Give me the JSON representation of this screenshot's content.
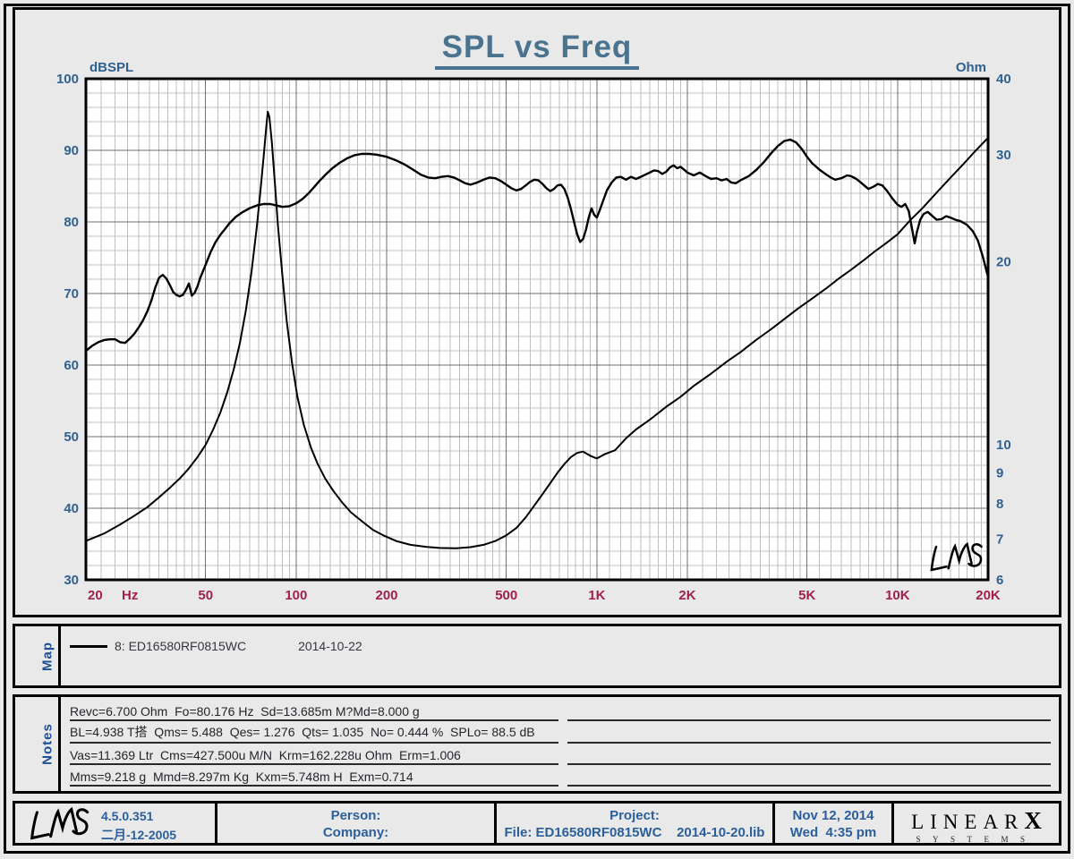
{
  "chart_data": {
    "type": "line",
    "title": "SPL vs Freq",
    "x_axis": {
      "scale": "log",
      "min": 20,
      "max": 20000,
      "unit": "Hz",
      "tick_values": [
        20,
        50,
        100,
        200,
        500,
        1000,
        2000,
        5000,
        10000,
        20000
      ],
      "tick_labels": [
        "20",
        "50",
        "100",
        "200",
        "500",
        "1K",
        "2K",
        "5K",
        "10K",
        "20K"
      ]
    },
    "y_axis_left": {
      "label": "dBSPL",
      "scale": "linear",
      "min": 30,
      "max": 100,
      "tick_values": [
        100,
        90,
        80,
        70,
        60,
        50,
        40,
        30
      ]
    },
    "y_axis_right": {
      "label": "Ohm",
      "scale": "log",
      "min": 6,
      "max": 40,
      "tick_values": [
        40,
        30,
        20,
        10,
        9,
        8,
        7,
        6
      ]
    },
    "grid": true,
    "watermark": "LMS",
    "series": [
      {
        "name": "SPL",
        "legend": "8: ED16580RF0815WC",
        "date": "2014-10-22",
        "axis": "left",
        "color": "#000000",
        "points": [
          [
            20,
            62
          ],
          [
            21,
            62.7
          ],
          [
            22,
            63.2
          ],
          [
            23,
            63.5
          ],
          [
            24,
            63.6
          ],
          [
            25,
            63.6
          ],
          [
            26,
            63.2
          ],
          [
            27,
            63.1
          ],
          [
            28,
            63.7
          ],
          [
            29,
            64.4
          ],
          [
            30,
            65.3
          ],
          [
            31,
            66.3
          ],
          [
            32,
            67.5
          ],
          [
            33,
            69
          ],
          [
            34,
            70.8
          ],
          [
            35,
            72.2
          ],
          [
            36,
            72.6
          ],
          [
            37,
            72.1
          ],
          [
            38,
            71.2
          ],
          [
            39,
            70.2
          ],
          [
            40,
            69.8
          ],
          [
            41,
            69.6
          ],
          [
            42,
            69.8
          ],
          [
            43,
            70.5
          ],
          [
            44,
            71.4
          ],
          [
            45,
            69.7
          ],
          [
            46,
            70.1
          ],
          [
            47,
            71
          ],
          [
            48,
            72.2
          ],
          [
            50,
            74
          ],
          [
            52,
            75.8
          ],
          [
            54,
            77.2
          ],
          [
            56,
            78.2
          ],
          [
            58,
            79
          ],
          [
            60,
            79.8
          ],
          [
            63,
            80.7
          ],
          [
            66,
            81.3
          ],
          [
            70,
            81.9
          ],
          [
            74,
            82.3
          ],
          [
            78,
            82.5
          ],
          [
            82,
            82.5
          ],
          [
            86,
            82.3
          ],
          [
            90,
            82.1
          ],
          [
            95,
            82.2
          ],
          [
            100,
            82.6
          ],
          [
            105,
            83.2
          ],
          [
            110,
            84
          ],
          [
            115,
            84.9
          ],
          [
            120,
            85.8
          ],
          [
            126,
            86.7
          ],
          [
            132,
            87.5
          ],
          [
            140,
            88.3
          ],
          [
            148,
            88.9
          ],
          [
            156,
            89.3
          ],
          [
            165,
            89.5
          ],
          [
            175,
            89.5
          ],
          [
            185,
            89.4
          ],
          [
            200,
            89.1
          ],
          [
            215,
            88.6
          ],
          [
            230,
            88
          ],
          [
            245,
            87.3
          ],
          [
            260,
            86.6
          ],
          [
            275,
            86.2
          ],
          [
            290,
            86.1
          ],
          [
            305,
            86.3
          ],
          [
            320,
            86.4
          ],
          [
            335,
            86.2
          ],
          [
            350,
            85.8
          ],
          [
            365,
            85.4
          ],
          [
            380,
            85.2
          ],
          [
            400,
            85.5
          ],
          [
            420,
            85.9
          ],
          [
            440,
            86.2
          ],
          [
            460,
            86.1
          ],
          [
            480,
            85.7
          ],
          [
            500,
            85.2
          ],
          [
            520,
            84.7
          ],
          [
            540,
            84.4
          ],
          [
            560,
            84.6
          ],
          [
            580,
            85.1
          ],
          [
            600,
            85.6
          ],
          [
            620,
            85.9
          ],
          [
            640,
            85.8
          ],
          [
            660,
            85.3
          ],
          [
            680,
            84.7
          ],
          [
            700,
            84.3
          ],
          [
            720,
            84.6
          ],
          [
            740,
            85.1
          ],
          [
            760,
            85.2
          ],
          [
            780,
            84.6
          ],
          [
            800,
            83.4
          ],
          [
            820,
            81.8
          ],
          [
            840,
            80
          ],
          [
            860,
            78.3
          ],
          [
            880,
            77.2
          ],
          [
            900,
            77.6
          ],
          [
            920,
            78.9
          ],
          [
            940,
            80.6
          ],
          [
            960,
            81.9
          ],
          [
            980,
            81
          ],
          [
            1000,
            80.6
          ],
          [
            1020,
            81.5
          ],
          [
            1050,
            83
          ],
          [
            1080,
            84.4
          ],
          [
            1120,
            85.5
          ],
          [
            1160,
            86.2
          ],
          [
            1200,
            86.3
          ],
          [
            1250,
            85.9
          ],
          [
            1300,
            86.3
          ],
          [
            1350,
            86
          ],
          [
            1400,
            86.3
          ],
          [
            1450,
            86.6
          ],
          [
            1500,
            86.9
          ],
          [
            1550,
            87.2
          ],
          [
            1600,
            87.1
          ],
          [
            1650,
            86.7
          ],
          [
            1700,
            87
          ],
          [
            1750,
            87.6
          ],
          [
            1800,
            87.9
          ],
          [
            1850,
            87.5
          ],
          [
            1900,
            87.7
          ],
          [
            1950,
            87.3
          ],
          [
            2000,
            86.9
          ],
          [
            2100,
            86.5
          ],
          [
            2200,
            86.9
          ],
          [
            2300,
            86.4
          ],
          [
            2400,
            86
          ],
          [
            2500,
            86.1
          ],
          [
            2600,
            85.8
          ],
          [
            2700,
            86
          ],
          [
            2800,
            85.5
          ],
          [
            2900,
            85.4
          ],
          [
            3000,
            85.8
          ],
          [
            3200,
            86.4
          ],
          [
            3400,
            87.3
          ],
          [
            3600,
            88.4
          ],
          [
            3800,
            89.6
          ],
          [
            4000,
            90.6
          ],
          [
            4200,
            91.3
          ],
          [
            4400,
            91.5
          ],
          [
            4600,
            91.1
          ],
          [
            4800,
            90.2
          ],
          [
            5000,
            89.1
          ],
          [
            5200,
            88.2
          ],
          [
            5500,
            87.3
          ],
          [
            5800,
            86.6
          ],
          [
            6000,
            86.2
          ],
          [
            6200,
            85.9
          ],
          [
            6500,
            86.1
          ],
          [
            6800,
            86.5
          ],
          [
            7000,
            86.4
          ],
          [
            7300,
            86
          ],
          [
            7600,
            85.4
          ],
          [
            8000,
            84.6
          ],
          [
            8300,
            84.9
          ],
          [
            8600,
            85.3
          ],
          [
            8900,
            85.1
          ],
          [
            9200,
            84.4
          ],
          [
            9600,
            83.3
          ],
          [
            10000,
            82.4
          ],
          [
            10300,
            82.1
          ],
          [
            10600,
            82.5
          ],
          [
            10900,
            81.5
          ],
          [
            11200,
            78.8
          ],
          [
            11400,
            77
          ],
          [
            11600,
            78.6
          ],
          [
            11900,
            80.3
          ],
          [
            12200,
            81.1
          ],
          [
            12600,
            81.4
          ],
          [
            13000,
            80.9
          ],
          [
            13500,
            80.3
          ],
          [
            14000,
            80.4
          ],
          [
            14500,
            80.8
          ],
          [
            15000,
            80.6
          ],
          [
            15600,
            80.3
          ],
          [
            16200,
            80.1
          ],
          [
            17000,
            79.6
          ],
          [
            17800,
            78.7
          ],
          [
            18500,
            77.4
          ],
          [
            19200,
            75.2
          ],
          [
            20000,
            72.3
          ]
        ]
      },
      {
        "name": "Impedance",
        "axis": "right",
        "color": "#000000",
        "points": [
          [
            20,
            6.95
          ],
          [
            23,
            7.15
          ],
          [
            26,
            7.4
          ],
          [
            29,
            7.65
          ],
          [
            32,
            7.9
          ],
          [
            35,
            8.2
          ],
          [
            38,
            8.5
          ],
          [
            41,
            8.8
          ],
          [
            44,
            9.15
          ],
          [
            47,
            9.55
          ],
          [
            50,
            10
          ],
          [
            53,
            10.6
          ],
          [
            56,
            11.3
          ],
          [
            59,
            12.2
          ],
          [
            62,
            13.3
          ],
          [
            65,
            14.7
          ],
          [
            68,
            16.6
          ],
          [
            71,
            19.2
          ],
          [
            74,
            22.8
          ],
          [
            76,
            26
          ],
          [
            78,
            29.8
          ],
          [
            79.5,
            33.2
          ],
          [
            80.5,
            35.3
          ],
          [
            81.5,
            34.6
          ],
          [
            83,
            31.5
          ],
          [
            85,
            27
          ],
          [
            87,
            23
          ],
          [
            90,
            19
          ],
          [
            93,
            16
          ],
          [
            97,
            13.6
          ],
          [
            101,
            12
          ],
          [
            106,
            10.8
          ],
          [
            112,
            9.9
          ],
          [
            118,
            9.3
          ],
          [
            125,
            8.8
          ],
          [
            133,
            8.4
          ],
          [
            142,
            8.05
          ],
          [
            152,
            7.75
          ],
          [
            165,
            7.5
          ],
          [
            180,
            7.25
          ],
          [
            195,
            7.1
          ],
          [
            215,
            6.95
          ],
          [
            240,
            6.85
          ],
          [
            270,
            6.8
          ],
          [
            300,
            6.77
          ],
          [
            340,
            6.76
          ],
          [
            380,
            6.79
          ],
          [
            420,
            6.85
          ],
          [
            460,
            6.95
          ],
          [
            500,
            7.1
          ],
          [
            540,
            7.3
          ],
          [
            580,
            7.6
          ],
          [
            620,
            7.95
          ],
          [
            660,
            8.3
          ],
          [
            700,
            8.65
          ],
          [
            740,
            9
          ],
          [
            780,
            9.3
          ],
          [
            820,
            9.55
          ],
          [
            860,
            9.7
          ],
          [
            900,
            9.75
          ],
          [
            950,
            9.6
          ],
          [
            1000,
            9.5
          ],
          [
            1060,
            9.65
          ],
          [
            1150,
            9.8
          ],
          [
            1250,
            10.25
          ],
          [
            1350,
            10.6
          ],
          [
            1500,
            11
          ],
          [
            1700,
            11.55
          ],
          [
            1900,
            12
          ],
          [
            2100,
            12.5
          ],
          [
            2400,
            13.1
          ],
          [
            2700,
            13.7
          ],
          [
            3000,
            14.2
          ],
          [
            3400,
            14.9
          ],
          [
            3800,
            15.5
          ],
          [
            4200,
            16.1
          ],
          [
            4700,
            16.8
          ],
          [
            5200,
            17.4
          ],
          [
            5800,
            18.1
          ],
          [
            6400,
            18.8
          ],
          [
            7000,
            19.4
          ],
          [
            7700,
            20.1
          ],
          [
            8400,
            20.8
          ],
          [
            9200,
            21.5
          ],
          [
            10000,
            22.2
          ],
          [
            11000,
            23.4
          ],
          [
            12000,
            24.4
          ],
          [
            13500,
            26
          ],
          [
            15000,
            27.5
          ],
          [
            16500,
            28.9
          ],
          [
            18000,
            30.3
          ],
          [
            20000,
            32
          ]
        ]
      }
    ]
  },
  "map": {
    "label": "Map",
    "legend_name": "8: ED16580RF0815WC",
    "legend_date": "2014-10-22"
  },
  "notes": {
    "label": "Notes",
    "lines": [
      "Revc=6.700 Ohm  Fo=80.176 Hz  Sd=13.685m M?Md=8.000 g",
      "BL=4.938 T搭  Qms= 5.488  Qes= 1.276  Qts= 1.035  No= 0.444 %  SPLo= 88.5 dB",
      "Vas=11.369 Ltr  Cms=427.500u M/N  Krm=162.228u Ohm  Erm=1.006",
      "Mms=9.218 g  Mmd=8.297m Kg  Kxm=5.748m H  Exm=0.714"
    ]
  },
  "footer": {
    "lms_logo": "LMS",
    "version": "4.5.0.351",
    "build_date": "二月-12-2005",
    "person_label": "Person:",
    "company_label": "Company:",
    "project_label": "Project:",
    "file_label": "File: ED16580RF0815WC    2014-10-20.lib",
    "date": "Nov 12, 2014",
    "time": "Wed  4:35 pm",
    "logo_line1": "LINEAR",
    "logo_x": "X",
    "logo_line2": "SYSTEMS"
  },
  "colors": {
    "title": "#4a7390",
    "y_axis_text": "#31618f",
    "x_axis_text": "#a1204c",
    "footer_text": "#2b5f9c",
    "grid_minor": "#bfbfbf",
    "grid_major": "#6e6e6e",
    "curve": "#000000",
    "background": "#e9e9e9"
  }
}
